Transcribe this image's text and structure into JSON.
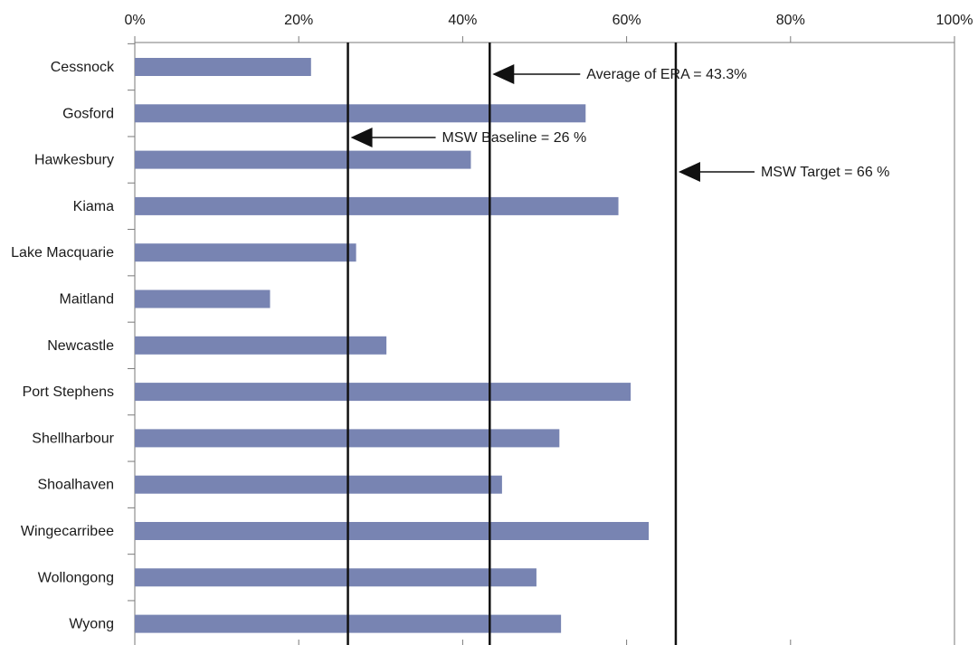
{
  "chart_data": {
    "type": "bar",
    "orientation": "horizontal",
    "categories": [
      "Cessnock",
      "Gosford",
      "Hawkesbury",
      "Kiama",
      "Lake Macquarie",
      "Maitland",
      "Newcastle",
      "Port Stephens",
      "Shellharbour",
      "Shoalhaven",
      "Wingecarribee",
      "Wollongong",
      "Wyong"
    ],
    "values": [
      21.5,
      55,
      41,
      59,
      27,
      16.5,
      30.7,
      60.5,
      51.8,
      44.8,
      62.7,
      49,
      52
    ],
    "xlim": [
      0,
      100
    ],
    "x_ticks": [
      "0%",
      "20%",
      "40%",
      "60%",
      "80%",
      "100%"
    ],
    "x_tick_values": [
      0,
      20,
      40,
      60,
      80,
      100
    ],
    "x_axis_position": "top",
    "bar_color": "#7884b2",
    "grid": false,
    "reference_lines": [
      {
        "value": 26,
        "label": "MSW Baseline = 26 %"
      },
      {
        "value": 43.3,
        "label": "Average of ERA = 43.3%"
      },
      {
        "value": 66,
        "label": "MSW Target = 66 %"
      }
    ]
  }
}
